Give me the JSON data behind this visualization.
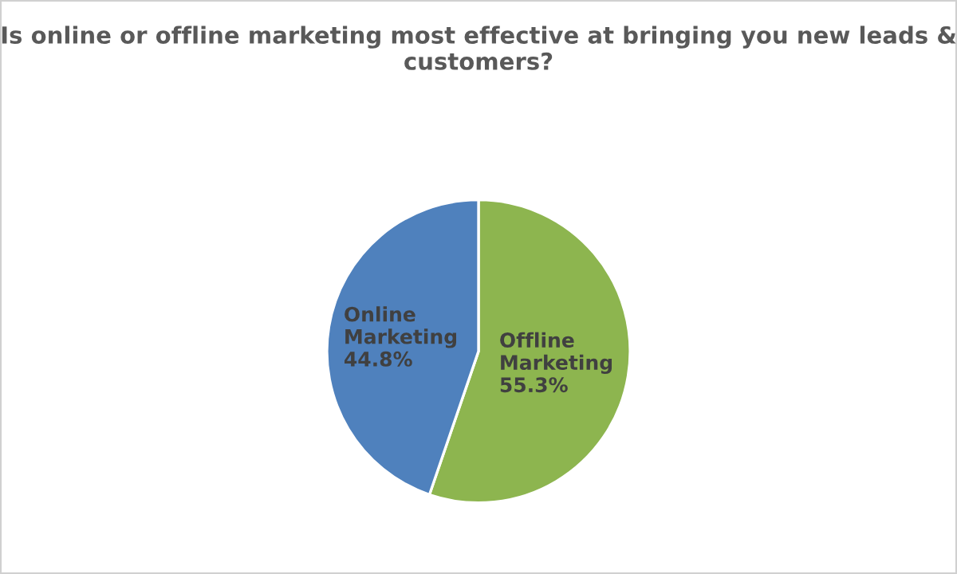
{
  "chart_data": {
    "type": "pie",
    "title": "Is online or offline marketing most effective at bringing you new leads & customers?",
    "categories": [
      "Offline Marketing",
      "Online Marketing"
    ],
    "values": [
      55.3,
      44.8
    ],
    "colors": [
      "#8db54f",
      "#4f81bd"
    ],
    "value_labels": [
      "55.3%",
      "44.8%"
    ]
  }
}
